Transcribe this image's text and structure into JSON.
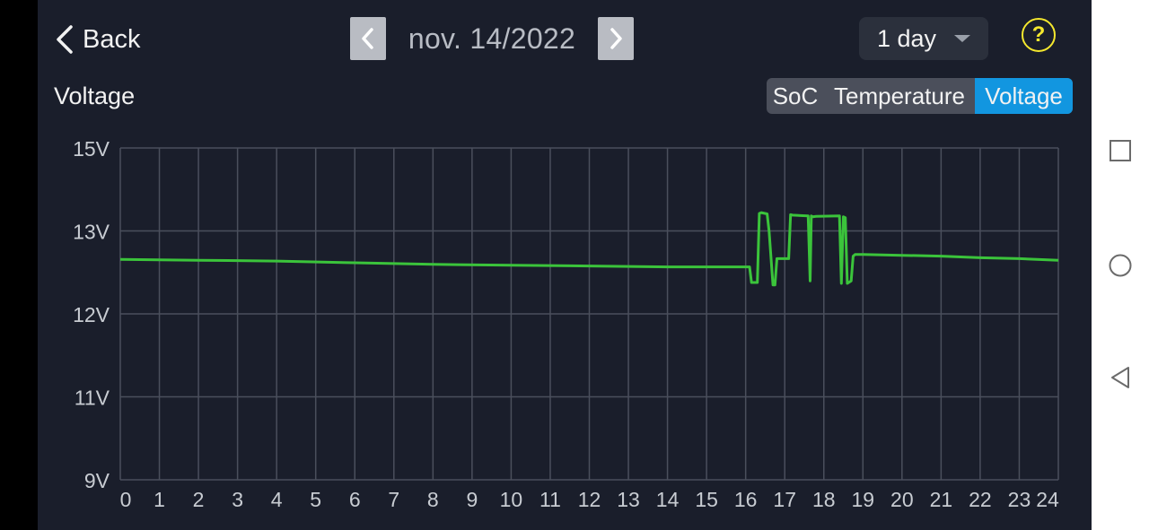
{
  "header": {
    "back_label": "Back",
    "date": "nov. 14/2022",
    "period": "1 day",
    "help_label": "?"
  },
  "section_title": "Voltage",
  "tabs": [
    {
      "label": "SoC",
      "active": false
    },
    {
      "label": "Temperature",
      "active": false
    },
    {
      "label": "Voltage",
      "active": true
    }
  ],
  "colors": {
    "background": "#1a1e2b",
    "line": "#3bc43b",
    "active_tab": "#1296e0",
    "help": "#f5e82e"
  },
  "icons": {
    "back": "chevron-left-icon",
    "prev": "chevron-left-icon",
    "next": "chevron-right-icon",
    "period": "caret-down-icon",
    "help": "question-circle-icon",
    "system": [
      "recent-apps-icon",
      "home-icon",
      "back-triangle-icon"
    ]
  },
  "chart_data": {
    "type": "line",
    "x_ticks": [
      "0",
      "1",
      "2",
      "3",
      "4",
      "5",
      "6",
      "7",
      "8",
      "9",
      "10",
      "11",
      "12",
      "13",
      "14",
      "15",
      "16",
      "17",
      "18",
      "19",
      "20",
      "21",
      "22",
      "23",
      "24"
    ],
    "y_ticks": [
      {
        "label": "15V",
        "value": 15
      },
      {
        "label": "13V",
        "value": 13
      },
      {
        "label": "12V",
        "value": 12
      },
      {
        "label": "11V",
        "value": 11
      },
      {
        "label": "9V",
        "value": 9
      }
    ],
    "xlim": [
      0,
      24
    ],
    "grid": true,
    "series": [
      {
        "x": [
          0,
          2,
          4,
          6,
          8,
          10,
          12,
          14,
          15,
          16.1,
          16.15,
          16.3,
          16.35,
          16.4,
          16.55,
          16.6,
          16.7,
          16.75,
          16.8,
          16.85,
          17.1,
          17.15,
          17.2,
          17.6,
          17.65,
          17.68,
          17.72,
          17.8,
          18.4,
          18.45,
          18.5,
          18.55,
          18.6,
          18.7,
          18.75,
          18.8,
          19,
          20,
          21,
          22,
          23,
          24
        ],
        "y": [
          12.66,
          12.65,
          12.64,
          12.62,
          12.6,
          12.59,
          12.58,
          12.57,
          12.57,
          12.57,
          12.38,
          12.38,
          13.43,
          13.45,
          13.42,
          13.0,
          12.35,
          12.35,
          12.67,
          12.67,
          12.67,
          13.4,
          13.39,
          13.37,
          12.4,
          13.37,
          13.35,
          13.36,
          13.37,
          12.37,
          13.35,
          13.33,
          12.37,
          12.4,
          12.7,
          12.72,
          12.72,
          12.71,
          12.7,
          12.68,
          12.67,
          12.65
        ]
      }
    ]
  }
}
